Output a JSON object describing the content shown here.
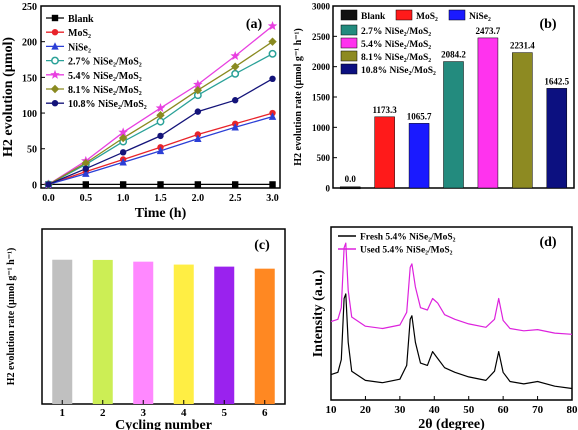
{
  "chart_data": [
    {
      "panel": "(a)",
      "type": "line",
      "xlabel": "Time (h)",
      "ylabel": "H2 evolution (µmol)",
      "xlim": [
        -0.1,
        3.1
      ],
      "ylim": [
        -5,
        250
      ],
      "xticks": [
        "0.0",
        "0.5",
        "1.0",
        "1.5",
        "2.0",
        "2.5",
        "3.0"
      ],
      "yticks": [
        "0",
        "50",
        "100",
        "150",
        "200",
        "250"
      ],
      "x": [
        0,
        0.5,
        1.0,
        1.5,
        2.0,
        2.5,
        3.0
      ],
      "legend_position": "top-left",
      "series": [
        {
          "name": "Blank",
          "color": "#000000",
          "marker": "square",
          "values": [
            0,
            0,
            0,
            0,
            0,
            0,
            0
          ]
        },
        {
          "name": "MoS₂",
          "color": "#e8232a",
          "marker": "circle",
          "values": [
            0,
            18,
            35,
            52,
            70,
            85,
            100
          ]
        },
        {
          "name": "NiSe₂",
          "color": "#2b3fd6",
          "marker": "triangle-up",
          "values": [
            0,
            15,
            31,
            47,
            64,
            80,
            95
          ]
        },
        {
          "name": "2.7% NiSe₂/MoS₂",
          "color": "#2aa198",
          "marker": "circle-open",
          "values": [
            0,
            28,
            60,
            88,
            125,
            155,
            183
          ]
        },
        {
          "name": "5.4% NiSe₂/MoS₂",
          "color": "#e840e0",
          "marker": "star",
          "values": [
            0,
            33,
            73,
            107,
            140,
            180,
            222
          ]
        },
        {
          "name": "8.1% NiSe₂/MoS₂",
          "color": "#8a8a20",
          "marker": "diamond",
          "values": [
            0,
            30,
            65,
            97,
            132,
            165,
            200
          ]
        },
        {
          "name": "10.8% NiSe₂/MoS₂",
          "color": "#14147a",
          "marker": "circle",
          "values": [
            0,
            22,
            45,
            68,
            102,
            118,
            148
          ]
        }
      ]
    },
    {
      "panel": "(b)",
      "type": "bar",
      "ylabel": "H2 evolution rate (µmol g⁻¹ h⁻¹)",
      "ylim": [
        0,
        3000
      ],
      "yticks": [
        "0",
        "500",
        "1000",
        "1500",
        "2000",
        "2500",
        "3000"
      ],
      "categories": [
        "Blank",
        "MoS₂",
        "NiSe₂",
        "2.7% NiSe₂/MoS₂",
        "5.4% NiSe₂/MoS₂",
        "8.1% NiSe₂/MoS₂",
        "10.8% NiSe₂/MoS₂"
      ],
      "values": [
        0.0,
        1173.3,
        1065.7,
        2084.2,
        2473.7,
        2231.4,
        1642.5
      ],
      "value_labels": [
        "0.0",
        "1173.3",
        "1065.7",
        "2084.2",
        "2473.7",
        "2231.4",
        "1642.5"
      ],
      "colors": [
        "#111111",
        "#ff1a1a",
        "#1a1aff",
        "#238b7e",
        "#ff33ee",
        "#8d8a22",
        "#0c1080"
      ],
      "legend_position": "top"
    },
    {
      "panel": "(c)",
      "type": "bar",
      "xlabel": "Cycling number",
      "ylabel": "H2 evolution rate (µmol g⁻¹ h⁻¹)",
      "ylim": [
        0,
        3000
      ],
      "yticks": [
        "0",
        "500",
        "1000",
        "1500",
        "2000",
        "2500",
        "3000"
      ],
      "categories": [
        "1",
        "2",
        "3",
        "4",
        "5",
        "6"
      ],
      "values": [
        2473,
        2470,
        2440,
        2390,
        2355,
        2320
      ],
      "colors": [
        "#c0c0c0",
        "#ccee55",
        "#ff88ff",
        "#ffee44",
        "#9a22ee",
        "#ff8822"
      ]
    },
    {
      "panel": "(d)",
      "type": "line",
      "xlabel": "2θ (degree)",
      "ylabel": "Intensity (a.u.)",
      "xlim": [
        10,
        80
      ],
      "xticks": [
        "10",
        "20",
        "30",
        "40",
        "50",
        "60",
        "70",
        "80"
      ],
      "legend_position": "top-left",
      "series": [
        {
          "name": "Fresh 5.4% NiSe₂/MoS₂",
          "color": "#000000",
          "x": [
            10,
            12,
            13,
            13.8,
            14.3,
            15,
            16,
            20,
            25,
            30,
            32,
            33,
            33.5,
            34.5,
            36,
            38,
            39.5,
            41,
            43,
            46,
            50,
            55,
            57.5,
            58.7,
            60,
            62,
            66,
            70,
            75,
            80
          ],
          "values": [
            0.22,
            0.24,
            0.35,
            0.88,
            0.92,
            0.5,
            0.25,
            0.17,
            0.15,
            0.18,
            0.3,
            0.7,
            0.73,
            0.5,
            0.32,
            0.3,
            0.42,
            0.36,
            0.28,
            0.24,
            0.2,
            0.17,
            0.25,
            0.42,
            0.24,
            0.16,
            0.14,
            0.16,
            0.12,
            0.1
          ]
        },
        {
          "name": "Used 5.4% NiSe₂/MoS₂",
          "color": "#dd22dd",
          "x": [
            10,
            12,
            13,
            13.8,
            14.3,
            15,
            16,
            20,
            25,
            30,
            32,
            33,
            33.5,
            34.5,
            36,
            38,
            39.5,
            41,
            43,
            46,
            50,
            55,
            57.5,
            58.7,
            60,
            62,
            66,
            70,
            75,
            80
          ],
          "values": [
            0.68,
            0.7,
            0.8,
            1.32,
            1.36,
            0.95,
            0.72,
            0.64,
            0.62,
            0.65,
            0.76,
            1.15,
            1.18,
            0.98,
            0.8,
            0.78,
            0.88,
            0.84,
            0.74,
            0.7,
            0.66,
            0.63,
            0.7,
            0.88,
            0.69,
            0.62,
            0.6,
            0.61,
            0.58,
            0.57
          ]
        }
      ]
    }
  ]
}
